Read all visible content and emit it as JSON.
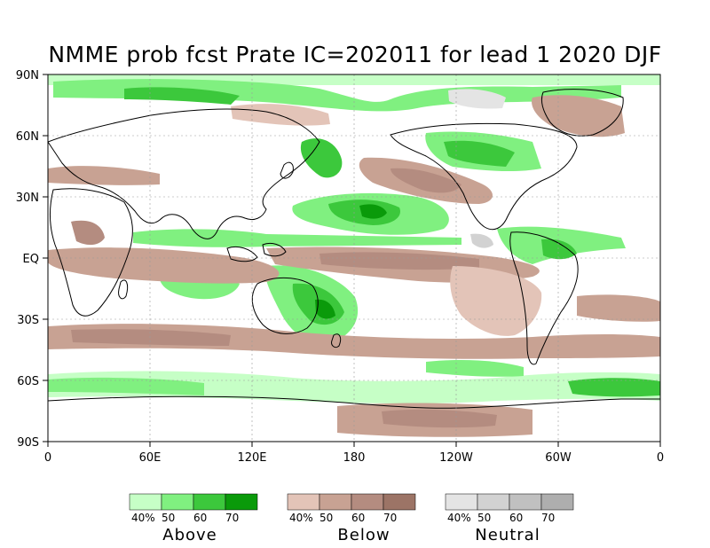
{
  "title": "NMME prob fcst Prate IC=202011 for lead 1 2020 DJF",
  "axes": {
    "y_ticks": [
      "90N",
      "60N",
      "30N",
      "EQ",
      "30S",
      "60S",
      "90S"
    ],
    "x_ticks": [
      "0",
      "60E",
      "120E",
      "180",
      "120W",
      "60W",
      "0"
    ]
  },
  "legend": {
    "groups": [
      {
        "name": "Above",
        "labels": [
          "40%",
          "50",
          "60",
          "70"
        ],
        "colors": [
          "#c6ffc6",
          "#80f080",
          "#3cc83c",
          "#0a9a0a"
        ]
      },
      {
        "name": "Below",
        "labels": [
          "40%",
          "50",
          "60",
          "70"
        ],
        "colors": [
          "#e3c4b8",
          "#c8a293",
          "#b48c80",
          "#9c7466"
        ]
      },
      {
        "name": "Neutral",
        "labels": [
          "40%",
          "50",
          "60",
          "70"
        ],
        "colors": [
          "#e4e4e4",
          "#d2d2d2",
          "#c0c0c0",
          "#aeaeae"
        ]
      }
    ]
  },
  "colors": {
    "above": "#3cc83c",
    "below": "#b48c80",
    "neutral": "#d2d2d2",
    "coast": "#000000"
  }
}
